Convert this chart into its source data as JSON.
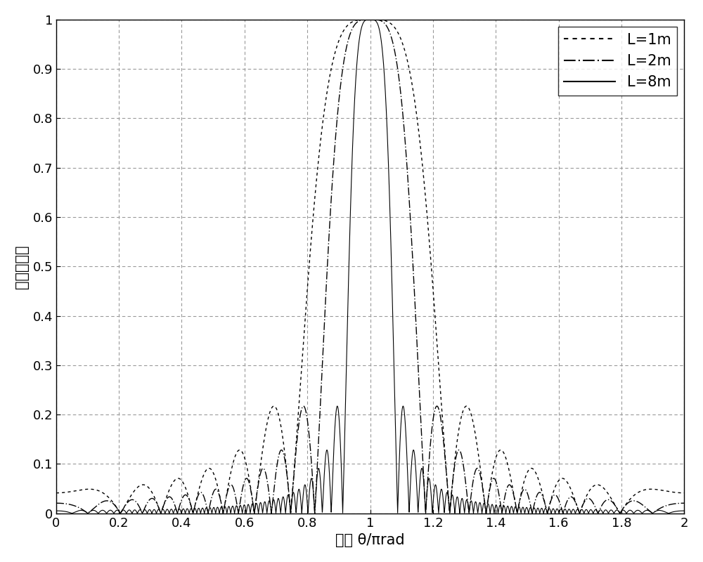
{
  "title": "",
  "xlabel": "角度 θ/πrad",
  "ylabel": "归一化幅値",
  "xlim": [
    0,
    2
  ],
  "ylim": [
    0,
    1
  ],
  "xticks": [
    0,
    0.2,
    0.4,
    0.6,
    0.8,
    1.0,
    1.2,
    1.4,
    1.6,
    1.8,
    2.0
  ],
  "yticks": [
    0,
    0.1,
    0.2,
    0.3,
    0.4,
    0.5,
    0.6,
    0.7,
    0.8,
    0.9,
    1.0
  ],
  "legend_labels": [
    "L=1m",
    "L=2m",
    "L=8m"
  ],
  "line_color": "black",
  "grid_color": "#999999",
  "background_color": "#ffffff",
  "L_values": [
    1,
    2,
    8
  ],
  "wavelength": 0.3,
  "num_points": 5000,
  "theta_min": 0.0,
  "theta_max": 2.0,
  "label_fontsize": 15,
  "tick_fontsize": 13,
  "legend_fontsize": 15
}
